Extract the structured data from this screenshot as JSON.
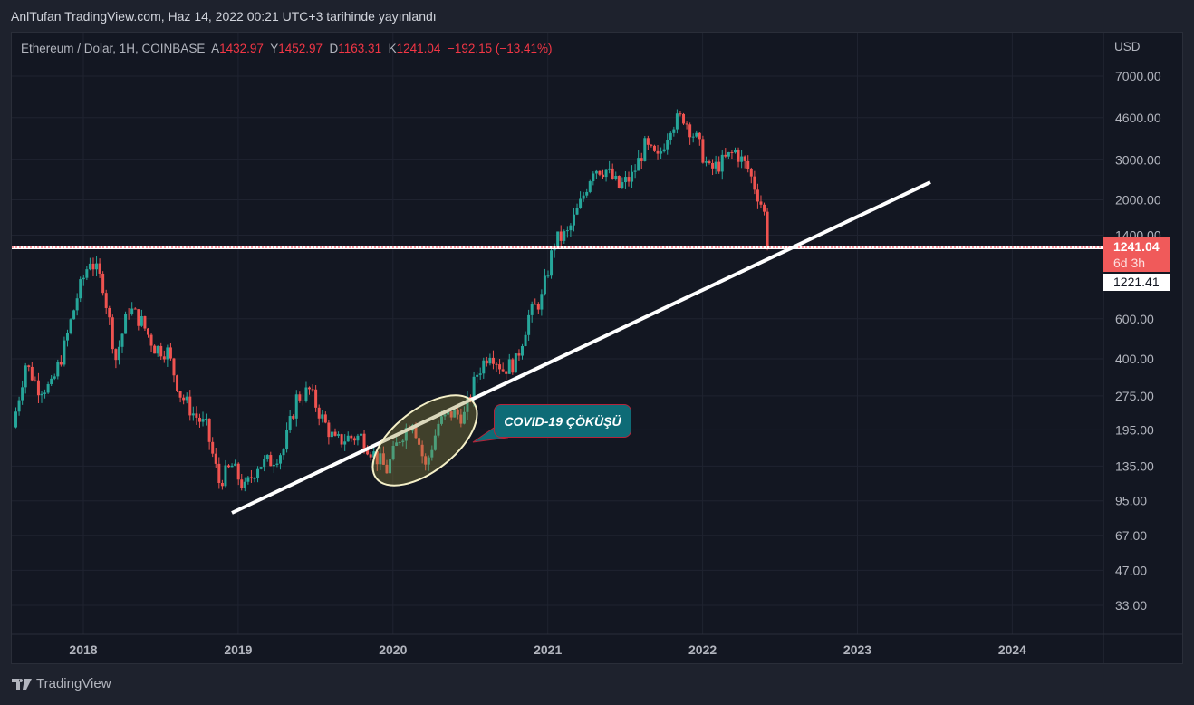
{
  "published": "AnlTufan TradingView.com, Haz 14, 2022 00:21 UTC+3 tarihinde yayınlandı",
  "legend": {
    "symbol": "Ethereum / Dolar, 1H, COINBASE",
    "o_label": "A",
    "o": "1432.97",
    "h_label": "Y",
    "h": "1452.97",
    "l_label": "D",
    "l": "1163.31",
    "c_label": "K",
    "c": "1241.04",
    "change": "−192.15 (−13.41%)"
  },
  "axis": {
    "currency": "USD",
    "price_ticks": [
      7000,
      4600,
      3000,
      2000,
      1400,
      600,
      400,
      275,
      195,
      135,
      95,
      67,
      47,
      33
    ],
    "price_tick_labels": [
      "7000.00",
      "4600.00",
      "3000.00",
      "2000.00",
      "1400.00",
      "600.00",
      "400.00",
      "275.00",
      "195.00",
      "135.00",
      "95.00",
      "67.00",
      "47.00",
      "33.00"
    ],
    "years": [
      "2018",
      "2019",
      "2020",
      "2021",
      "2022",
      "2023",
      "2024"
    ]
  },
  "last_price": {
    "value": "1241.04",
    "countdown": "6d 3h",
    "color": "#f05a5a"
  },
  "line_price": "1221.41",
  "annotation": "COVID-19 ÇÖKÜŞÜ",
  "brand": "TradingView",
  "colors": {
    "up": "#26a69a",
    "down": "#ef5350",
    "bg": "#131722"
  },
  "chart_data": {
    "type": "candlestick",
    "scale": "log",
    "start": "2017-08",
    "monthly_close": [
      380,
      300,
      300,
      450,
      750,
      1100,
      850,
      400,
      670,
      580,
      450,
      430,
      280,
      230,
      200,
      115,
      135,
      107,
      137,
      142,
      160,
      268,
      290,
      218,
      172,
      180,
      182,
      152,
      130,
      180,
      218,
      133,
      207,
      230,
      225,
      345,
      435,
      360,
      386,
      615,
      737,
      1314,
      1417,
      1918,
      2773,
      2700,
      2270,
      2536,
      3430,
      3000,
      4300,
      4630,
      3680,
      2690,
      2920,
      3280,
      2730,
      1940,
      1241
    ]
  }
}
